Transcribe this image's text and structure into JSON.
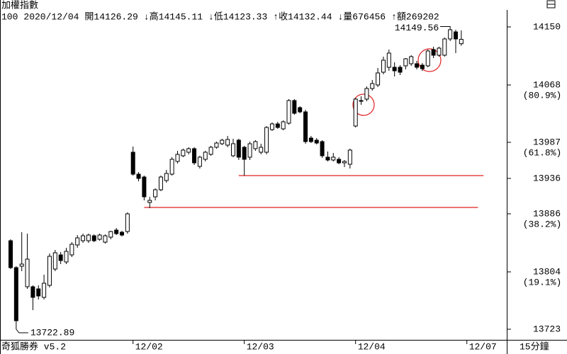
{
  "chart_data": {
    "type": "candlestick",
    "title": "加權指數",
    "info": [
      "100",
      "2020/12/04",
      "開14126.29",
      "↓高14145.11",
      "↓低14123.33",
      "↑收14132.44",
      "↓量676456",
      "↑額269202"
    ],
    "footer": "奇狐勝券 v5.2",
    "period": "15分鐘",
    "categories": [
      null,
      null,
      null,
      null,
      null,
      null,
      null,
      null,
      null,
      null,
      null,
      null,
      null,
      null,
      null,
      null,
      null,
      null,
      null,
      null,
      null,
      null,
      "12/02",
      null,
      null,
      null,
      null,
      null,
      null,
      null,
      null,
      null,
      null,
      null,
      null,
      null,
      null,
      null,
      null,
      null,
      null,
      null,
      "12/03",
      null,
      null,
      null,
      null,
      null,
      null,
      null,
      null,
      null,
      null,
      null,
      null,
      null,
      null,
      null,
      null,
      null,
      null,
      null,
      "12/04",
      null,
      null,
      null,
      null,
      null,
      null,
      null,
      null,
      null,
      null,
      null,
      null,
      null,
      null,
      null,
      null,
      null,
      null,
      null,
      "12/07"
    ],
    "open": [
      13848,
      13810,
      13812,
      13783,
      13783,
      13780,
      13768,
      13785,
      13808,
      13828,
      13818,
      13828,
      13842,
      13848,
      13848,
      13855,
      13850,
      13846,
      13853,
      13863,
      13860,
      13861,
      13973,
      13942,
      13938,
      13902,
      13910,
      13920,
      13933,
      13942,
      13960,
      13968,
      13973,
      13978,
      13953,
      13963,
      13970,
      13980,
      13985,
      13983,
      13968,
      13990,
      13980,
      13966,
      13978,
      13973,
      13973,
      14005,
      14013,
      14006,
      14014,
      14046,
      14036,
      14030,
      13993,
      13990,
      13988,
      13966,
      13962,
      13963,
      13958,
      13956,
      14010,
      14045,
      14048,
      14063,
      14068,
      14086,
      14093,
      14093,
      14093,
      14095,
      14098,
      14098,
      14096,
      14095,
      14118,
      14110,
      14110,
      14133,
      14143,
      14126.29,
      null
    ],
    "high": [
      13850,
      13812,
      13860,
      13858,
      13785,
      13785,
      13800,
      13830,
      13835,
      13832,
      13838,
      13846,
      13856,
      13858,
      13858,
      13857,
      13858,
      13857,
      13862,
      13866,
      13862,
      13888,
      13981,
      13945,
      13940,
      13910,
      13922,
      13940,
      13948,
      13966,
      13975,
      13978,
      13980,
      13980,
      13968,
      13975,
      13982,
      13988,
      13992,
      13996,
      13992,
      13992,
      13982,
      13988,
      13990,
      13985,
      14010,
      14015,
      14016,
      14018,
      14048,
      14048,
      14038,
      14033,
      13996,
      13993,
      13990,
      13974,
      13972,
      13966,
      13962,
      13978,
      14050,
      14052,
      14066,
      14075,
      14092,
      14108,
      14118,
      14100,
      14096,
      14106,
      14110,
      14102,
      14099,
      14118,
      14122,
      14122,
      14135,
      14149.56,
      14146,
      14145.11,
      null
    ],
    "low": [
      13808,
      13723,
      13805,
      13780,
      13750,
      13765,
      13765,
      13782,
      13805,
      13815,
      13815,
      13825,
      13838,
      13845,
      13845,
      13846,
      13848,
      13844,
      13850,
      13856,
      13854,
      13858,
      13940,
      13932,
      13905,
      13894,
      13905,
      13918,
      13930,
      13940,
      13957,
      13966,
      13970,
      13955,
      13950,
      13960,
      13968,
      13978,
      13983,
      13980,
      13966,
      13962,
      13940,
      13962,
      13975,
      13970,
      13970,
      14003,
      14006,
      14004,
      14012,
      14026,
      14028,
      13985,
      13986,
      13984,
      13965,
      13960,
      13960,
      13956,
      13952,
      13950,
      14008,
      14040,
      14045,
      14060,
      14065,
      14083,
      14088,
      14080,
      14082,
      14090,
      14095,
      14090,
      14088,
      14093,
      14106,
      14108,
      14108,
      14130,
      14113,
      14123.33,
      null
    ],
    "close": [
      13810,
      13735,
      13815,
      13822,
      13768,
      13770,
      13788,
      13826,
      13831,
      13820,
      13833,
      13843,
      13852,
      13855,
      13856,
      13848,
      13856,
      13855,
      13861,
      13858,
      13856,
      13886,
      13942,
      13936,
      13910,
      13905,
      13920,
      13938,
      13943,
      13963,
      13970,
      13976,
      13978,
      13958,
      13966,
      13973,
      13980,
      13986,
      13990,
      13991,
      13985,
      13966,
      13963,
      13985,
      13988,
      13980,
      14008,
      14013,
      14008,
      14016,
      14046,
      14028,
      14030,
      13988,
      13988,
      13986,
      13968,
      13962,
      13966,
      13958,
      13960,
      13976,
      14048,
      14046,
      14063,
      14070,
      14085,
      14103,
      14113,
      14088,
      14086,
      14105,
      14108,
      14093,
      14091,
      14116,
      14110,
      14120,
      14133,
      14146,
      14133,
      14132.44,
      null
    ],
    "up_color": "#ffffff",
    "down_color": "#000000",
    "edge_color": "#000000",
    "ylim": [
      13708,
      14174
    ],
    "yticks": [
      14150,
      14068,
      13987,
      13936,
      13886,
      13804,
      13723
    ],
    "retracements": [
      {
        "value": 14068,
        "label": "(80.9%)"
      },
      {
        "value": 13987,
        "label": "(61.8%)"
      },
      {
        "value": 13886,
        "label": "(38.2%)"
      },
      {
        "value": 13804,
        "label": "(19.1%)"
      }
    ],
    "annotations": [
      {
        "text": "14149.56",
        "index": 79,
        "at": "high"
      },
      {
        "text": "13722.89",
        "index": 1,
        "at": "low"
      }
    ],
    "lines": [
      {
        "value": 13940,
        "from": 41,
        "to": 85,
        "color": "#e02020"
      },
      {
        "value": 13895,
        "from": 24,
        "to": 84,
        "color": "#e02020"
      }
    ]
  }
}
